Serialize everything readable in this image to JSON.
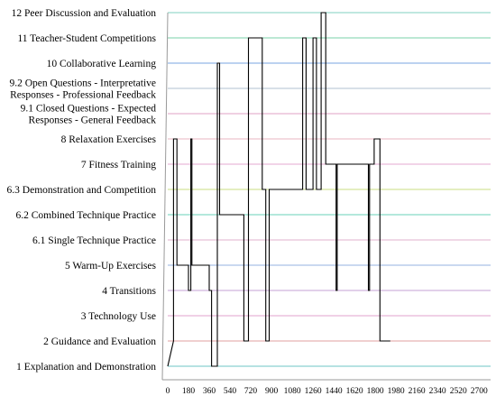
{
  "chart_data": {
    "type": "line",
    "categories": [
      "1 Explanation and Demonstration",
      "2 Guidance and Evaluation",
      "3 Technology Use",
      "4 Transitions",
      "5 Warm-Up Exercises",
      "6.1 Single Technique Practice",
      "6.2 Combined Technique Practice",
      "6.3 Demonstration and Competition",
      "7 Fitness Training",
      "8 Relaxation Exercises",
      [
        "9.1 Closed Questions - Expected",
        "Responses - General Feedback"
      ],
      [
        "9.2 Open Questions - Interpretative",
        "Responses - Professional Feedback"
      ],
      "10 Collaborative Learning",
      "11 Teacher-Student Competitions",
      "12 Peer Discussion and Evaluation"
    ],
    "line_colors": [
      "#6cc4c4",
      "#e0a0a0",
      "#e2a2cc",
      "#c6a0d6",
      "#94b0e0",
      "#e2b0cc",
      "#6ad2b8",
      "#c8dc82",
      "#e6a8d0",
      "#e9b6c2",
      "#e0a0c4",
      "#b0c0d0",
      "#7aa6e2",
      "#7ad0a8",
      "#80d0c0"
    ],
    "x_ticks": [
      0,
      180,
      360,
      540,
      720,
      900,
      1080,
      1260,
      1440,
      1620,
      1800,
      1980,
      2160,
      2340,
      2520,
      2700
    ],
    "xlim": [
      0,
      2800
    ],
    "series_color": "#000000",
    "points": [
      [
        0,
        0
      ],
      [
        50,
        1
      ],
      [
        50,
        9
      ],
      [
        80,
        9
      ],
      [
        80,
        4
      ],
      [
        180,
        4
      ],
      [
        180,
        3
      ],
      [
        200,
        3
      ],
      [
        200,
        9
      ],
      [
        210,
        9
      ],
      [
        210,
        4
      ],
      [
        360,
        4
      ],
      [
        360,
        3
      ],
      [
        380,
        3
      ],
      [
        380,
        0
      ],
      [
        430,
        0
      ],
      [
        430,
        12
      ],
      [
        450,
        12
      ],
      [
        450,
        6
      ],
      [
        660,
        6
      ],
      [
        660,
        1
      ],
      [
        700,
        1
      ],
      [
        700,
        13
      ],
      [
        820,
        13
      ],
      [
        820,
        7
      ],
      [
        850,
        7
      ],
      [
        850,
        1
      ],
      [
        880,
        1
      ],
      [
        880,
        7
      ],
      [
        1170,
        7
      ],
      [
        1170,
        13
      ],
      [
        1200,
        13
      ],
      [
        1200,
        7
      ],
      [
        1260,
        7
      ],
      [
        1260,
        13
      ],
      [
        1290,
        13
      ],
      [
        1290,
        7
      ],
      [
        1330,
        7
      ],
      [
        1330,
        14
      ],
      [
        1370,
        14
      ],
      [
        1370,
        8
      ],
      [
        1460,
        8
      ],
      [
        1460,
        3
      ],
      [
        1470,
        3
      ],
      [
        1470,
        8
      ],
      [
        1740,
        8
      ],
      [
        1740,
        3
      ],
      [
        1750,
        3
      ],
      [
        1750,
        8
      ],
      [
        1790,
        8
      ],
      [
        1790,
        9
      ],
      [
        1840,
        9
      ],
      [
        1840,
        1
      ],
      [
        1930,
        1
      ]
    ]
  }
}
